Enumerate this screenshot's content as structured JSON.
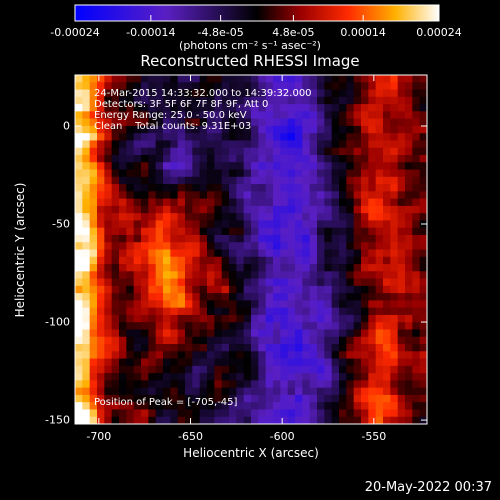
{
  "chart_data": {
    "type": "heatmap",
    "title": "Reconstructed RHESSI Image",
    "xlabel": "Heliocentric X (arcsec)",
    "ylabel": "Heliocentric Y (arcsec)",
    "xlim": [
      -713,
      -521
    ],
    "ylim": [
      -152,
      26
    ],
    "x_ticks": [
      "-700",
      "-650",
      "-600",
      "-550"
    ],
    "y_ticks": [
      "0",
      "-50",
      "-100",
      "-150"
    ],
    "colorbar": {
      "ticks": [
        "-0.00024",
        "-0.00014",
        "-4.8e-05",
        "4.8e-05",
        "0.00014",
        "0.00024"
      ],
      "unit_label": "(photons cm⁻² s⁻¹ asec⁻²)",
      "range": [
        -0.00024,
        0.00024
      ],
      "colormap": "blue-purple-black-red-yellow-white"
    },
    "peak": {
      "x": -705,
      "y": -45
    },
    "annotations": {
      "time": "24-Mar-2015 14:33:32.000 to 14:39:32.000",
      "detectors": "Detectors: 3F 5F 6F 7F 8F 9F, Att 0",
      "energy": "Energy Range: 25.0 - 50.0 keV",
      "clean": "Clean    Total counts: 9.31E+03",
      "peak_text": "Position of Peak = [-705,-45]"
    }
  },
  "footer_date": "20-May-2022 00:37"
}
